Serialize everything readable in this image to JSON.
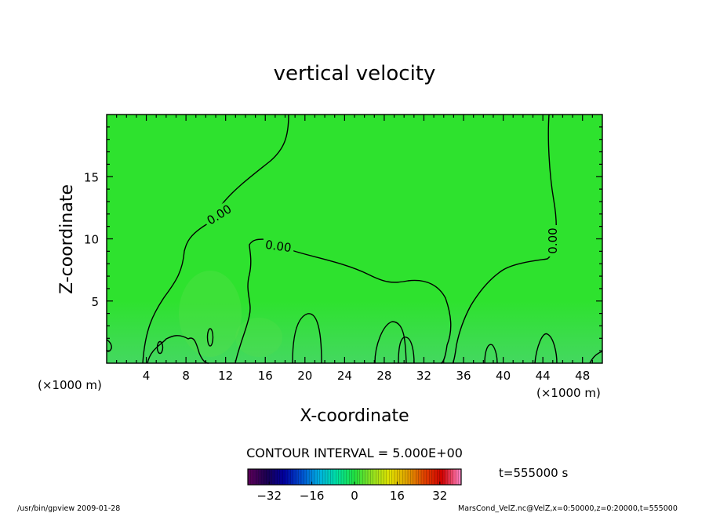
{
  "chart_data": {
    "type": "heatmap",
    "title": "vertical velocity",
    "xlabel": "X-coordinate",
    "ylabel": "Z-coordinate",
    "x_unit": "(×1000 m)",
    "x_unit_right": "(×1000 m)",
    "xlim": [
      0,
      50
    ],
    "ylim": [
      0,
      20
    ],
    "x_ticks": [
      4,
      8,
      12,
      16,
      20,
      24,
      28,
      32,
      36,
      40,
      44,
      48
    ],
    "y_ticks": [
      5,
      10,
      15
    ],
    "grid": false,
    "field_color": "#2be02b",
    "contour_interval_text": "CONTOUR INTERVAL = 5.000E+00",
    "contour_labels": [
      "0.00",
      "0.00",
      "0.00"
    ],
    "time_label": "t=555000 s",
    "colorbar": {
      "range": [
        -40,
        40
      ],
      "ticks": [
        -32,
        -16,
        0,
        16,
        32
      ],
      "colors": [
        "#5a005a",
        "#1a0050",
        "#0000a0",
        "#0050d0",
        "#00b0e0",
        "#00e0a0",
        "#20e040",
        "#90e020",
        "#e0e000",
        "#e0a000",
        "#e04000",
        "#d00000",
        "#ff80c0"
      ]
    }
  },
  "footer": {
    "left": "/usr/bin/gpview   2009-01-28",
    "right": "MarsCond_VelZ.nc@VelZ,x=0:50000,z=0:20000,t=555000"
  }
}
